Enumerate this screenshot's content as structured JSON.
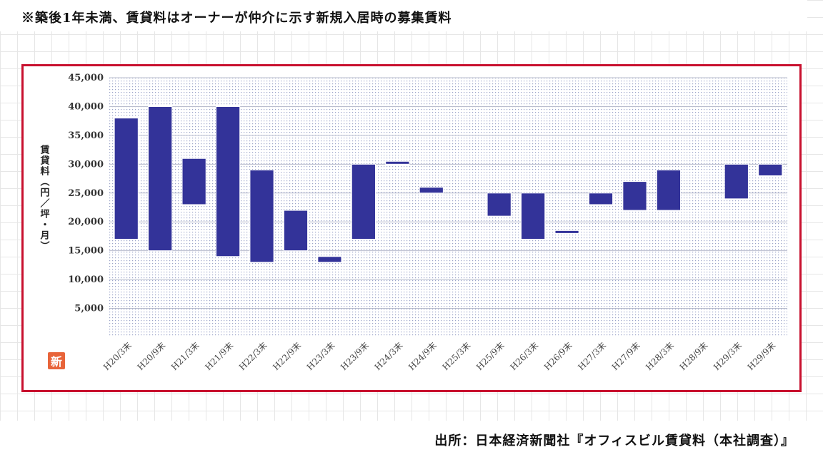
{
  "note": "※築後1年未満、賃貸料はオーナーが仲介に示す新規入居時の募集賃料",
  "source": "出所：日本経済新聞社『オフィスビル賃貸料（本社調査）』",
  "logo_text": "新",
  "chart_data": {
    "type": "bar",
    "subtype": "floating-range",
    "ylabel": "賃貸料（円／坪・月）",
    "ylim": [
      0,
      45000
    ],
    "yticks": [
      "5,000",
      "10,000",
      "15,000",
      "20,000",
      "25,000",
      "30,000",
      "35,000",
      "40,000",
      "45,000"
    ],
    "categories": [
      "H20/3末",
      "H20/9末",
      "H21/3末",
      "H21/9末",
      "H22/3末",
      "H22/9末",
      "H23/3末",
      "H23/9末",
      "H24/3末",
      "H24/9末",
      "H25/3末",
      "H25/9末",
      "H26/3末",
      "H26/9末",
      "H27/3末",
      "H27/9末",
      "H28/3末",
      "H28/9末",
      "H29/3末",
      "H29/9末"
    ],
    "low": [
      17000,
      15000,
      23000,
      14000,
      13000,
      15000,
      13000,
      17000,
      30000,
      25000,
      null,
      21000,
      17000,
      18000,
      23000,
      22000,
      22000,
      null,
      24000,
      28000
    ],
    "high": [
      38000,
      40000,
      31000,
      40000,
      29000,
      22000,
      14000,
      30000,
      30500,
      26000,
      null,
      25000,
      25000,
      18500,
      25000,
      27000,
      29000,
      null,
      30000,
      30000
    ],
    "bar_color": "#333399",
    "grid": true,
    "legend": "none"
  }
}
